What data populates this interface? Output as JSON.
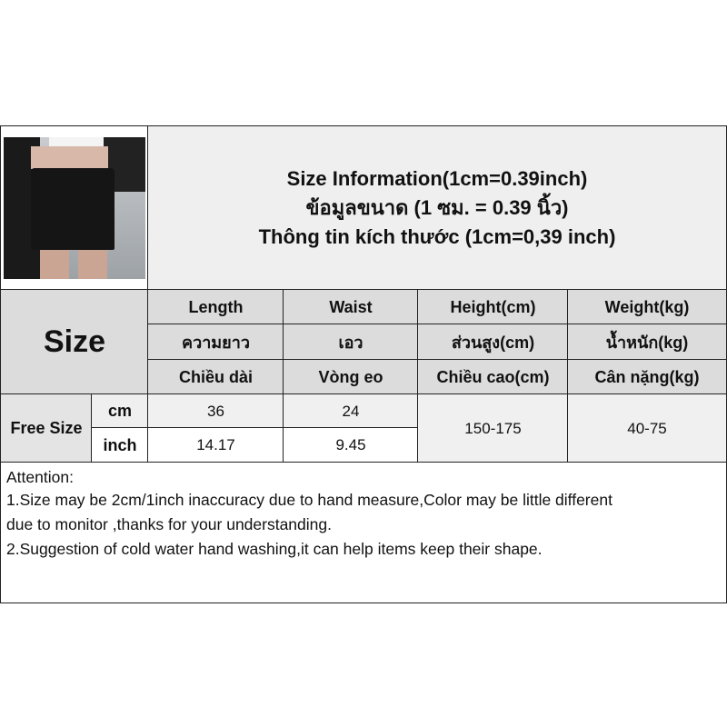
{
  "header": {
    "title_lines": [
      "Size Information(1cm=0.39inch)",
      "ข้อมูลขนาด (1 ซม. = 0.39 นิ้ว)",
      "Thông tin kích thước (1cm=0,39 inch)"
    ],
    "photo": "product-photo-black-leather-mini-skirt"
  },
  "table": {
    "size_label": "Size",
    "columns": [
      {
        "en": "Length",
        "th": "ความยาว",
        "vi": "Chiều dài"
      },
      {
        "en": "Waist",
        "th": "เอว",
        "vi": "Vòng eo"
      },
      {
        "en": "Height(cm)",
        "th": "ส่วนสูง(cm)",
        "vi": "Chiều cao(cm)"
      },
      {
        "en": "Weight(kg)",
        "th": "น้ำหนัก(kg)",
        "vi": "Cân nặng(kg)"
      }
    ],
    "row_label": "Free Size",
    "rows": [
      {
        "unit": "cm",
        "length": "36",
        "waist": "24"
      },
      {
        "unit": "inch",
        "length": "14.17",
        "waist": "9.45"
      }
    ],
    "height": "150-175",
    "weight": "40-75"
  },
  "notes": {
    "heading": "Attention:",
    "line1a": "1.Size may be 2cm/1inch inaccuracy due to hand measure,Color may be little different",
    "line1b": "due to monitor ,thanks for your understanding.",
    "line2": "2.Suggestion of cold water hand washing,it can help items keep their shape."
  }
}
